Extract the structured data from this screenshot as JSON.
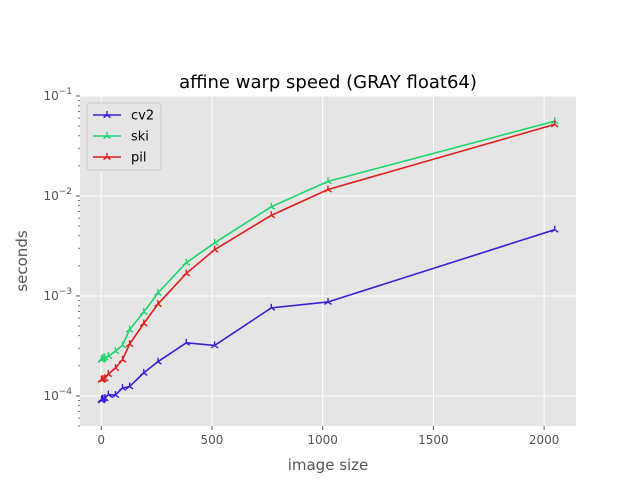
{
  "chart_data": {
    "type": "line",
    "title": "affine warp speed (GRAY float64)",
    "xlabel": "image size",
    "ylabel": "seconds",
    "xlim": [
      -96,
      2144
    ],
    "ylim": [
      5e-05,
      0.1
    ],
    "yscale": "log",
    "grid": true,
    "legend_position": "top-left",
    "x_ticks": [
      {
        "value": 0,
        "label": "0"
      },
      {
        "value": 500,
        "label": "500"
      },
      {
        "value": 1000,
        "label": "1000"
      },
      {
        "value": 1500,
        "label": "1500"
      },
      {
        "value": 2000,
        "label": "2000"
      }
    ],
    "y_ticks": [
      {
        "value": 0.0001,
        "base": "10",
        "exp": "−4"
      },
      {
        "value": 0.001,
        "base": "10",
        "exp": "−3"
      },
      {
        "value": 0.01,
        "base": "10",
        "exp": "−2"
      },
      {
        "value": 0.1,
        "base": "10",
        "exp": "−1"
      }
    ],
    "series": [
      {
        "name": "cv2",
        "color": "#3a1ed6",
        "x": [
          1,
          2,
          4,
          8,
          16,
          32,
          64,
          96,
          128,
          192,
          256,
          384,
          512,
          768,
          1024,
          2048
        ],
        "y": [
          9e-05,
          9.2e-05,
          9.3e-05,
          9.4e-05,
          9.5e-05,
          0.000103,
          0.000102,
          0.00012,
          0.000124,
          0.00017,
          0.00022,
          0.00034,
          0.00032,
          0.00076,
          0.00087,
          0.0046
        ]
      },
      {
        "name": "ski",
        "color": "#1fd46a",
        "x": [
          1,
          2,
          4,
          8,
          16,
          32,
          64,
          96,
          128,
          192,
          256,
          384,
          512,
          768,
          1024,
          2048
        ],
        "y": [
          0.00023,
          0.000232,
          0.000235,
          0.00024,
          0.000242,
          0.00025,
          0.00028,
          0.00032,
          0.00046,
          0.00069,
          0.00107,
          0.00215,
          0.0034,
          0.0078,
          0.014,
          0.056
        ]
      },
      {
        "name": "pil",
        "color": "#e01e1e",
        "x": [
          1,
          2,
          4,
          8,
          16,
          32,
          64,
          96,
          128,
          192,
          256,
          384,
          512,
          768,
          1024,
          2048
        ],
        "y": [
          0.000145,
          0.000146,
          0.000146,
          0.000147,
          0.00015,
          0.000165,
          0.00019,
          0.00023,
          0.00033,
          0.00053,
          0.00083,
          0.00168,
          0.0029,
          0.0064,
          0.0116,
          0.052
        ]
      }
    ]
  }
}
